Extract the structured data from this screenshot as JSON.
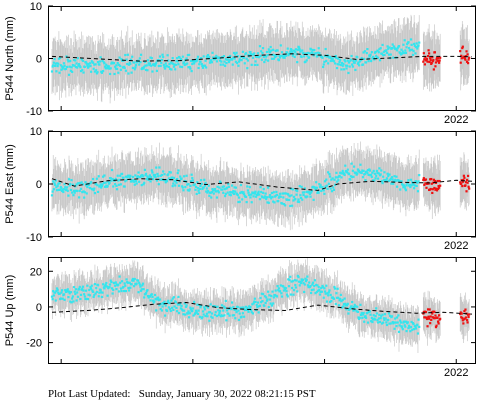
{
  "footer": {
    "label": "Plot Last Updated:",
    "timestamp": "Sunday, January 30, 2022 08:21:15 PST"
  },
  "colors": {
    "cyan_points": "#33e5ee",
    "red_points": "#ee1111",
    "error_bars": "#c8c8c8",
    "model_line": "#000000",
    "axis": "#000000"
  },
  "chart_data": [
    {
      "type": "scatter",
      "title": "",
      "ylabel": "P544 North (mm)",
      "xlabel": "",
      "x_tick_labels": [
        "2022"
      ],
      "y_ticks": [
        -10,
        0,
        10
      ],
      "ylim": [
        -10,
        10
      ],
      "xlim": [
        2018.9,
        2022.15
      ],
      "errorbar_mm": 4.5,
      "series": [
        {
          "color": "cyan",
          "x_range": [
            2018.93,
            2021.72
          ],
          "trend": [
            [
              2018.93,
              -1.5
            ],
            [
              2019.3,
              -1.4
            ],
            [
              2019.7,
              -1.0
            ],
            [
              2020.1,
              -0.5
            ],
            [
              2020.4,
              0.0
            ],
            [
              2020.7,
              1.2
            ],
            [
              2021.0,
              0.2
            ],
            [
              2021.2,
              -1.0
            ],
            [
              2021.45,
              1.2
            ],
            [
              2021.72,
              2.5
            ]
          ]
        },
        {
          "color": "red",
          "x_range": [
            2021.75,
            2021.88
          ],
          "trend": [
            [
              2021.75,
              0.0
            ],
            [
              2021.88,
              -0.5
            ]
          ]
        },
        {
          "color": "red",
          "x_range": [
            2022.03,
            2022.1
          ],
          "trend": [
            [
              2022.03,
              1.0
            ],
            [
              2022.1,
              0.0
            ]
          ]
        }
      ],
      "model_line": [
        [
          2018.93,
          0.4
        ],
        [
          2019.3,
          -0.1
        ],
        [
          2019.6,
          -0.5
        ],
        [
          2019.9,
          -0.4
        ],
        [
          2020.2,
          0.1
        ],
        [
          2020.5,
          0.6
        ],
        [
          2020.75,
          0.9
        ],
        [
          2021.0,
          0.6
        ],
        [
          2021.25,
          -0.2
        ],
        [
          2021.5,
          0.1
        ],
        [
          2021.75,
          0.4
        ],
        [
          2022.0,
          0.4
        ],
        [
          2022.12,
          0.3
        ]
      ]
    },
    {
      "type": "scatter",
      "title": "",
      "ylabel": "P544 East (mm)",
      "xlabel": "",
      "x_tick_labels": [
        "2022"
      ],
      "y_ticks": [
        -10,
        0,
        10
      ],
      "ylim": [
        -10,
        10
      ],
      "xlim": [
        2018.9,
        2022.15
      ],
      "errorbar_mm": 4.0,
      "series": [
        {
          "color": "cyan",
          "x_range": [
            2018.93,
            2021.72
          ],
          "trend": [
            [
              2018.93,
              -0.5
            ],
            [
              2019.1,
              -1.2
            ],
            [
              2019.4,
              0.5
            ],
            [
              2019.65,
              1.5
            ],
            [
              2019.9,
              0.8
            ],
            [
              2020.1,
              -0.8
            ],
            [
              2020.4,
              -1.8
            ],
            [
              2020.7,
              -2.5
            ],
            [
              2020.95,
              -1.2
            ],
            [
              2021.15,
              2.0
            ],
            [
              2021.3,
              2.2
            ],
            [
              2021.5,
              0.8
            ],
            [
              2021.72,
              -0.3
            ]
          ]
        },
        {
          "color": "red",
          "x_range": [
            2021.75,
            2021.88
          ],
          "trend": [
            [
              2021.75,
              0.5
            ],
            [
              2021.88,
              -0.5
            ]
          ]
        },
        {
          "color": "red",
          "x_range": [
            2022.03,
            2022.1
          ],
          "trend": [
            [
              2022.03,
              0.8
            ],
            [
              2022.1,
              0.0
            ]
          ]
        }
      ],
      "model_line": [
        [
          2018.93,
          1.0
        ],
        [
          2019.1,
          -0.4
        ],
        [
          2019.35,
          0.6
        ],
        [
          2019.6,
          1.0
        ],
        [
          2019.85,
          0.8
        ],
        [
          2020.1,
          -0.1
        ],
        [
          2020.35,
          0.4
        ],
        [
          2020.65,
          -0.6
        ],
        [
          2020.95,
          -1.2
        ],
        [
          2021.1,
          0.0
        ],
        [
          2021.35,
          0.5
        ],
        [
          2021.6,
          0.3
        ],
        [
          2021.8,
          0.2
        ],
        [
          2022.0,
          0.7
        ],
        [
          2022.12,
          0.5
        ]
      ]
    },
    {
      "type": "scatter",
      "title": "",
      "ylabel": "P544 Up (mm)",
      "xlabel": "",
      "x_tick_labels": [
        "2022"
      ],
      "y_ticks": [
        -20,
        0,
        20
      ],
      "ylim": [
        -32,
        28
      ],
      "xlim": [
        2018.9,
        2022.15
      ],
      "errorbar_mm": 9.0,
      "series": [
        {
          "color": "cyan",
          "x_range": [
            2018.93,
            2021.72
          ],
          "trend": [
            [
              2018.93,
              6.0
            ],
            [
              2019.3,
              9.0
            ],
            [
              2019.55,
              14.0
            ],
            [
              2019.75,
              2.0
            ],
            [
              2020.05,
              -3.0
            ],
            [
              2020.4,
              -3.0
            ],
            [
              2020.6,
              5.0
            ],
            [
              2020.8,
              14.0
            ],
            [
              2021.05,
              7.0
            ],
            [
              2021.3,
              -4.0
            ],
            [
              2021.5,
              -8.0
            ],
            [
              2021.72,
              -12.0
            ]
          ]
        },
        {
          "color": "red",
          "x_range": [
            2021.75,
            2021.88
          ],
          "trend": [
            [
              2021.75,
              -3.0
            ],
            [
              2021.88,
              -8.0
            ]
          ]
        },
        {
          "color": "red",
          "x_range": [
            2022.03,
            2022.1
          ],
          "trend": [
            [
              2022.03,
              -5.0
            ],
            [
              2022.1,
              -6.0
            ]
          ]
        }
      ],
      "model_line": [
        [
          2018.93,
          -3.0
        ],
        [
          2019.2,
          -2.0
        ],
        [
          2019.45,
          -0.5
        ],
        [
          2019.7,
          1.5
        ],
        [
          2019.95,
          2.5
        ],
        [
          2020.2,
          -0.5
        ],
        [
          2020.45,
          -1.5
        ],
        [
          2020.7,
          -2.0
        ],
        [
          2020.95,
          1.0
        ],
        [
          2021.2,
          -1.0
        ],
        [
          2021.45,
          -2.5
        ],
        [
          2021.7,
          -3.5
        ],
        [
          2021.9,
          -3.0
        ],
        [
          2022.12,
          -4.0
        ]
      ]
    }
  ]
}
